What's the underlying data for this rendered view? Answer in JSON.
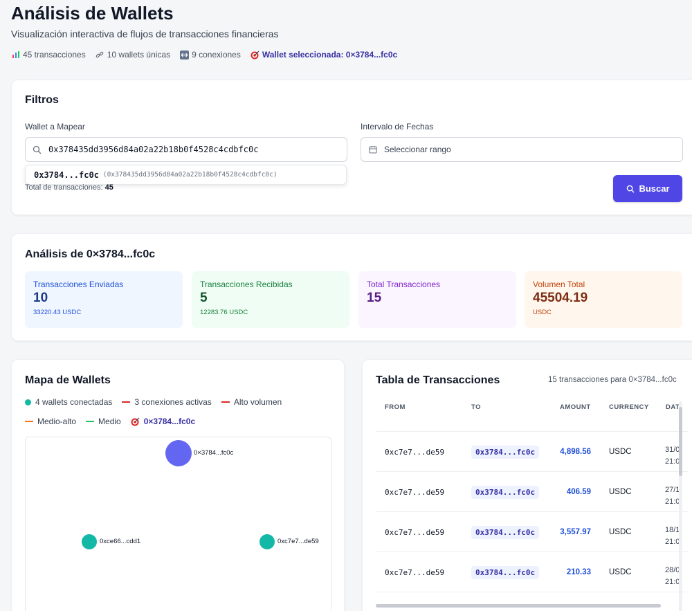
{
  "header": {
    "title": "Análisis de Wallets",
    "subtitle": "Visualización interactiva de flujos de transacciones financieras",
    "stats": {
      "transactions": "45 transacciones",
      "wallets": "10 wallets únicas",
      "connections": "9 conexiones",
      "selected": "Wallet seleccionada: 0×3784...fc0c"
    }
  },
  "filters": {
    "title": "Filtros",
    "wallet_label": "Wallet a Mapear",
    "wallet_value": "0x378435dd3956d84a02a22b18b0f4528c4cdbfc0c",
    "suggestion_short": "0x3784...fc0c",
    "suggestion_full": "(0x378435dd3956d84a02a22b18b0f4528c4cdbfc0c)",
    "date_label": "Intervalo de Fechas",
    "date_placeholder": "Seleccionar rango",
    "total_label": "Total de transacciones:",
    "total_value": "45",
    "search_button": "Buscar"
  },
  "analysis": {
    "title": "Análisis de 0×3784...fc0c",
    "cards": [
      {
        "title": "Transacciones Enviadas",
        "value": "10",
        "sub": "33220.43 USDC",
        "bg": "#eff6ff",
        "color": "#1d4ed8",
        "vcolor": "#1e3a8a"
      },
      {
        "title": "Transacciones Recibidas",
        "value": "5",
        "sub": "12283.76 USDC",
        "bg": "#f0fdf4",
        "color": "#15803d",
        "vcolor": "#14532d"
      },
      {
        "title": "Total Transacciones",
        "value": "15",
        "sub": "",
        "bg": "#faf5ff",
        "color": "#7e22ce",
        "vcolor": "#581c87"
      },
      {
        "title": "Volumen Total",
        "value": "45504.19",
        "sub": "USDC",
        "bg": "#fff7ed",
        "color": "#c2410c",
        "vcolor": "#7c2d12"
      }
    ]
  },
  "map": {
    "title": "Mapa de Wallets",
    "legend": {
      "connected": "4 wallets conectadas",
      "active": "3 conexiones activas",
      "high": "Alto volumen",
      "medhigh": "Medio-alto",
      "medium": "Medio",
      "selected": "0×3784...fc0c"
    },
    "nodes": {
      "center": "0×3784...fc0c",
      "left": "0xce66...cdd1",
      "right": "0xc7e7...de59"
    },
    "colors": {
      "center": "#6366f1",
      "node": "#14b8a6",
      "high": "#dc2626",
      "medhigh": "#f97316",
      "medium": "#22c55e"
    }
  },
  "table": {
    "title": "Tabla de Transacciones",
    "subtitle": "15 transacciones para 0×3784...fc0c",
    "headers": {
      "from": "FROM",
      "to": "TO",
      "amount": "AMOUNT",
      "currency": "CURRENCY",
      "date": "DAT"
    },
    "rows": [
      {
        "from": "0xc7e7...de59",
        "to": "0x3784...fc0c",
        "amount": "4,898.56",
        "currency": "USDC",
        "date1": "31/0",
        "date2": "21:0"
      },
      {
        "from": "0xc7e7...de59",
        "to": "0x3784...fc0c",
        "amount": "406.59",
        "currency": "USDC",
        "date1": "27/1",
        "date2": "21:0"
      },
      {
        "from": "0xc7e7...de59",
        "to": "0x3784...fc0c",
        "amount": "3,557.97",
        "currency": "USDC",
        "date1": "18/1",
        "date2": "21:0"
      },
      {
        "from": "0xc7e7...de59",
        "to": "0x3784...fc0c",
        "amount": "210.33",
        "currency": "USDC",
        "date1": "28/0",
        "date2": "21:0"
      }
    ]
  }
}
